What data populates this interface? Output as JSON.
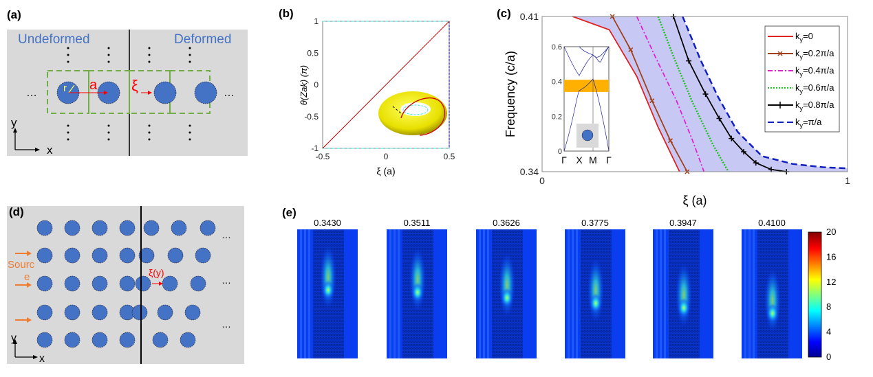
{
  "panel_a": {
    "label": "(a)",
    "left_title": "Undeformed",
    "right_title": "Deformed",
    "r_label": "r",
    "a_label": "a",
    "xi_label": "ξ",
    "axis_x": "x",
    "axis_y": "y",
    "ellipsis": "…",
    "colors": {
      "background": "#d9d9d9",
      "cylinder": "#4472c4",
      "cell": "#70ad47",
      "arrow": "#ff0000",
      "text": "#4472c4"
    }
  },
  "panel_b": {
    "label": "(b)"
  },
  "panel_c": {
    "label": "(c)",
    "inset": {
      "yticks": [
        "0.6",
        "0.4",
        "0.2",
        "0"
      ],
      "xticks": [
        "Γ",
        "X",
        "M",
        "Γ"
      ],
      "band_gap_color": "#ffb000"
    }
  },
  "panel_d": {
    "label": "(d)",
    "source_label_1": "Sourc",
    "source_label_2": "e",
    "xi_label": "ξ(y)",
    "axis_x": "x",
    "axis_y": "y",
    "ellipsis": "…",
    "colors": {
      "source": "#ed7d31"
    }
  },
  "panel_e": {
    "label": "(e)",
    "frequencies": [
      "0.3430",
      "0.3511",
      "0.3626",
      "0.3775",
      "0.3947",
      "0.4100"
    ],
    "colorbar": {
      "ticks": [
        "20",
        "16",
        "12",
        "8",
        "4",
        "0"
      ],
      "range": [
        0,
        20
      ],
      "colormap": "jet"
    }
  },
  "chart_data": [
    {
      "type": "line",
      "panel": "b",
      "xlabel": "ξ (a)",
      "ylabel": "θ(Zak) (π)",
      "xlim": [
        -0.5,
        0.5
      ],
      "ylim": [
        -1,
        1
      ],
      "xticks": [
        "-0.5",
        "0",
        "0.5"
      ],
      "yticks": [
        "1",
        "0.5",
        "0",
        "-0.5",
        "-1"
      ],
      "series": [
        {
          "x": [
            -0.5,
            0.5
          ],
          "y": [
            -1,
            1
          ],
          "color": "#c00000"
        }
      ]
    },
    {
      "type": "line",
      "panel": "c",
      "xlabel": "ξ (a)",
      "ylabel": "Frequency (c/a)",
      "xlim": [
        0,
        1
      ],
      "ylim": [
        0.34,
        0.41
      ],
      "xticks": [
        "0",
        "1"
      ],
      "yticks": [
        "0.41",
        "0.34"
      ],
      "legend": "top-right",
      "fill_color": "#c8c8f5",
      "series": [
        {
          "name": "k_y=0",
          "label_sub": "y",
          "label_rest": "=0",
          "color": "#e02020",
          "style": "solid",
          "marker": "none",
          "x": [
            0.1,
            0.22,
            0.31,
            0.38,
            0.45
          ],
          "y": [
            0.41,
            0.404,
            0.383,
            0.36,
            0.34
          ]
        },
        {
          "name": "k_y=0.2π/a",
          "label_sub": "y",
          "label_rest": "=0.2π/a",
          "color": "#a0401a",
          "style": "solid",
          "marker": "x",
          "x": [
            0.23,
            0.29,
            0.36,
            0.42,
            0.475
          ],
          "y": [
            0.41,
            0.395,
            0.372,
            0.354,
            0.34
          ]
        },
        {
          "name": "k_y=0.4π/a",
          "label_sub": "y",
          "label_rest": "=0.4π/a",
          "color": "#e020d0",
          "style": "dashdot",
          "marker": "none",
          "x": [
            0.31,
            0.37,
            0.44,
            0.49,
            0.53
          ],
          "y": [
            0.41,
            0.392,
            0.372,
            0.355,
            0.34
          ]
        },
        {
          "name": "k_y=0.6π/a",
          "label_sub": "y",
          "label_rest": "=0.6π/a",
          "color": "#20c020",
          "style": "dotted",
          "marker": "none",
          "x": [
            0.38,
            0.43,
            0.49,
            0.56,
            0.61
          ],
          "y": [
            0.41,
            0.392,
            0.372,
            0.352,
            0.34
          ]
        },
        {
          "name": "k_y=0.8π/a",
          "label_sub": "y",
          "label_rest": "=0.8π/a",
          "color": "#000000",
          "style": "solid",
          "marker": "+",
          "x": [
            0.43,
            0.48,
            0.535,
            0.58,
            0.62,
            0.66,
            0.7,
            0.75,
            0.8
          ],
          "y": [
            0.41,
            0.39,
            0.375,
            0.364,
            0.355,
            0.349,
            0.344,
            0.341,
            0.34
          ]
        },
        {
          "name": "k_y=π/a",
          "label_sub": "y",
          "label_rest": "=π/a",
          "color": "#1020c0",
          "style": "dashed",
          "marker": "none",
          "x": [
            0.46,
            0.52,
            0.575,
            0.64,
            0.72,
            0.82,
            0.92,
            1.0
          ],
          "y": [
            0.41,
            0.39,
            0.374,
            0.358,
            0.347,
            0.3435,
            0.342,
            0.3415
          ]
        }
      ]
    }
  ]
}
